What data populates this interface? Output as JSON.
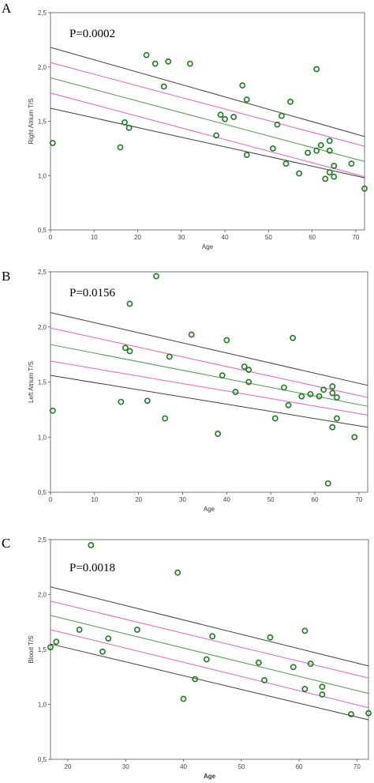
{
  "colors": {
    "point": "#1e7a1e",
    "fit": "#4e9a4e",
    "ci": "#e060d0",
    "pi": "#404040"
  },
  "chart_data": [
    {
      "type": "scatter",
      "panel": "A",
      "annotation": "P=0.0002",
      "xlabel": "Age",
      "ylabel": "Right Atrium T/S",
      "xlim": [
        0,
        72
      ],
      "ylim": [
        0.5,
        2.5
      ],
      "xticks": [
        "0",
        "10",
        "20",
        "30",
        "40",
        "50",
        "60",
        "70"
      ],
      "yticks": [
        "0,5",
        "1,0",
        "1,5",
        "2,0",
        "2,5"
      ],
      "points": [
        [
          0.5,
          1.3
        ],
        [
          16,
          1.26
        ],
        [
          17,
          1.49
        ],
        [
          18,
          1.44
        ],
        [
          22,
          2.11
        ],
        [
          24,
          2.03
        ],
        [
          26,
          1.82
        ],
        [
          27,
          2.05
        ],
        [
          32,
          2.03
        ],
        [
          38,
          1.37
        ],
        [
          39,
          1.56
        ],
        [
          40,
          1.52
        ],
        [
          42,
          1.54
        ],
        [
          44,
          1.83
        ],
        [
          45,
          1.7
        ],
        [
          45,
          1.19
        ],
        [
          51,
          1.25
        ],
        [
          52,
          1.47
        ],
        [
          53,
          1.55
        ],
        [
          54,
          1.11
        ],
        [
          55,
          1.68
        ],
        [
          57,
          1.02
        ],
        [
          59,
          1.21
        ],
        [
          61,
          1.98
        ],
        [
          61,
          1.23
        ],
        [
          62,
          1.28
        ],
        [
          63,
          0.97
        ],
        [
          64,
          1.32
        ],
        [
          64,
          1.23
        ],
        [
          64,
          1.03
        ],
        [
          65,
          1.09
        ],
        [
          65,
          0.99
        ],
        [
          69,
          1.11
        ],
        [
          72,
          0.88
        ]
      ],
      "fit": [
        [
          0,
          1.9
        ],
        [
          72,
          1.13
        ]
      ],
      "ci_upper": [
        [
          0,
          2.04
        ],
        [
          72,
          1.27
        ]
      ],
      "ci_lower": [
        [
          0,
          1.76
        ],
        [
          72,
          0.99
        ]
      ],
      "pi_upper": [
        [
          0,
          2.18
        ],
        [
          72,
          1.36
        ]
      ],
      "pi_lower": [
        [
          0,
          1.62
        ],
        [
          72,
          0.98
        ]
      ],
      "grid": false
    },
    {
      "type": "scatter",
      "panel": "B",
      "annotation": "P=0.0156",
      "xlabel": "Age",
      "ylabel": "Left Atrium T/S",
      "xlim": [
        0,
        72
      ],
      "ylim": [
        0.5,
        2.5
      ],
      "xticks": [
        "0",
        "10",
        "20",
        "30",
        "40",
        "50",
        "60",
        "70"
      ],
      "yticks": [
        "0,5",
        "1,0",
        "1,5",
        "2,0",
        "2,5"
      ],
      "points": [
        [
          0.5,
          1.24
        ],
        [
          16,
          1.32
        ],
        [
          17,
          1.81
        ],
        [
          18,
          2.21
        ],
        [
          18,
          1.78
        ],
        [
          22,
          1.33
        ],
        [
          24,
          2.46
        ],
        [
          26,
          1.17
        ],
        [
          27,
          1.73
        ],
        [
          32,
          1.93
        ],
        [
          38,
          1.03
        ],
        [
          39,
          1.56
        ],
        [
          40,
          1.88
        ],
        [
          42,
          1.41
        ],
        [
          44,
          1.64
        ],
        [
          45,
          1.61
        ],
        [
          45,
          1.5
        ],
        [
          51,
          1.17
        ],
        [
          53,
          1.45
        ],
        [
          54,
          1.29
        ],
        [
          55,
          1.9
        ],
        [
          57,
          1.37
        ],
        [
          59,
          1.39
        ],
        [
          61,
          1.37
        ],
        [
          62,
          1.43
        ],
        [
          63,
          0.58
        ],
        [
          64,
          1.46
        ],
        [
          64,
          1.4
        ],
        [
          64,
          1.09
        ],
        [
          65,
          1.36
        ],
        [
          65,
          1.17
        ],
        [
          69,
          1.0
        ]
      ],
      "fit": [
        [
          0,
          1.84
        ],
        [
          72,
          1.28
        ]
      ],
      "ci_upper": [
        [
          0,
          1.99
        ],
        [
          72,
          1.36
        ]
      ],
      "ci_lower": [
        [
          0,
          1.69
        ],
        [
          72,
          1.2
        ]
      ],
      "pi_upper": [
        [
          0,
          2.13
        ],
        [
          72,
          1.47
        ]
      ],
      "pi_lower": [
        [
          0,
          1.56
        ],
        [
          72,
          1.09
        ]
      ],
      "grid": false
    },
    {
      "type": "scatter",
      "panel": "C",
      "annotation": "P=0.0018",
      "xlabel": "Age",
      "ylabel": "Blood T/S",
      "xlim": [
        17,
        72
      ],
      "ylim": [
        0.5,
        2.5
      ],
      "xticks": [
        "20",
        "30",
        "40",
        "50",
        "60",
        "70"
      ],
      "yticks": [
        "0,5",
        "1,0",
        "1,5",
        "2,0",
        "2,5"
      ],
      "points": [
        [
          17,
          1.52
        ],
        [
          18,
          1.57
        ],
        [
          22,
          1.68
        ],
        [
          24,
          2.45
        ],
        [
          26,
          1.48
        ],
        [
          27,
          1.6
        ],
        [
          32,
          1.68
        ],
        [
          39,
          2.2
        ],
        [
          40,
          1.05
        ],
        [
          42,
          1.23
        ],
        [
          44,
          1.41
        ],
        [
          45,
          1.62
        ],
        [
          53,
          1.38
        ],
        [
          54,
          1.22
        ],
        [
          55,
          1.61
        ],
        [
          59,
          1.34
        ],
        [
          61,
          1.67
        ],
        [
          61,
          1.14
        ],
        [
          62,
          1.37
        ],
        [
          64,
          1.16
        ],
        [
          64,
          1.09
        ],
        [
          69,
          0.91
        ],
        [
          72,
          0.92
        ]
      ],
      "fit": [
        [
          17,
          1.81
        ],
        [
          72,
          1.1
        ]
      ],
      "ci_upper": [
        [
          17,
          1.94
        ],
        [
          72,
          1.24
        ]
      ],
      "ci_lower": [
        [
          17,
          1.68
        ],
        [
          72,
          0.97
        ]
      ],
      "pi_upper": [
        [
          17,
          2.07
        ],
        [
          72,
          1.35
        ]
      ],
      "pi_lower": [
        [
          17,
          1.55
        ],
        [
          72,
          0.86
        ]
      ],
      "grid": false
    }
  ]
}
